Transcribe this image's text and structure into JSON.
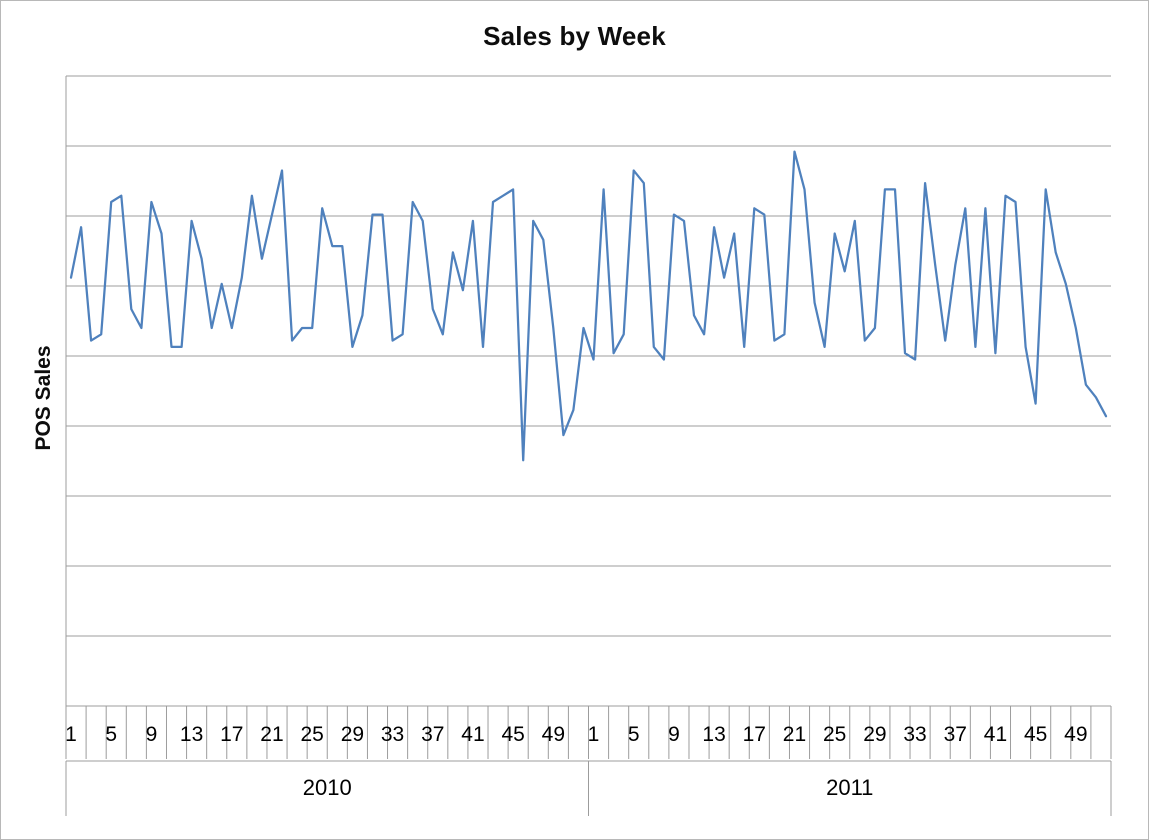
{
  "chart_data": {
    "type": "line",
    "title": "Sales by Week",
    "xlabel": "",
    "ylabel": "POS Sales",
    "legend": "none",
    "grid": true,
    "ylim": [
      0,
      100
    ],
    "y_gridline_divisions": 9,
    "y_tick_labels_visible": false,
    "x": {
      "years": [
        "2010",
        "2011"
      ],
      "weeks_per_year": 52,
      "tick_labels": [
        "1",
        "5",
        "9",
        "13",
        "17",
        "21",
        "25",
        "29",
        "33",
        "37",
        "41",
        "45",
        "49"
      ],
      "tick_label_interval": 4,
      "tick_mark_interval": 2
    },
    "series": [
      {
        "name": "POS Sales",
        "color": "#4F81BD",
        "values": [
          68,
          76,
          58,
          59,
          80,
          81,
          63,
          60,
          80,
          75,
          57,
          57,
          77,
          71,
          60,
          67,
          60,
          68,
          81,
          71,
          78,
          85,
          58,
          60,
          60,
          79,
          73,
          73,
          57,
          62,
          78,
          78,
          58,
          59,
          80,
          77,
          63,
          59,
          72,
          66,
          77,
          57,
          80,
          81,
          82,
          39,
          77,
          74,
          60,
          43,
          47,
          60,
          55,
          82,
          56,
          59,
          85,
          83,
          57,
          55,
          78,
          77,
          62,
          59,
          76,
          68,
          75,
          57,
          79,
          78,
          58,
          59,
          88,
          82,
          64,
          57,
          75,
          69,
          77,
          58,
          60,
          82,
          82,
          56,
          55,
          83,
          70,
          58,
          70,
          79,
          57,
          79,
          56,
          81,
          80,
          57,
          48,
          82,
          72,
          67,
          60,
          51,
          49,
          46
        ]
      }
    ],
    "colors": {
      "line": "#4F81BD",
      "gridline": "#9c9c9c",
      "axis": "#9c9c9c",
      "text": "#000000"
    }
  }
}
